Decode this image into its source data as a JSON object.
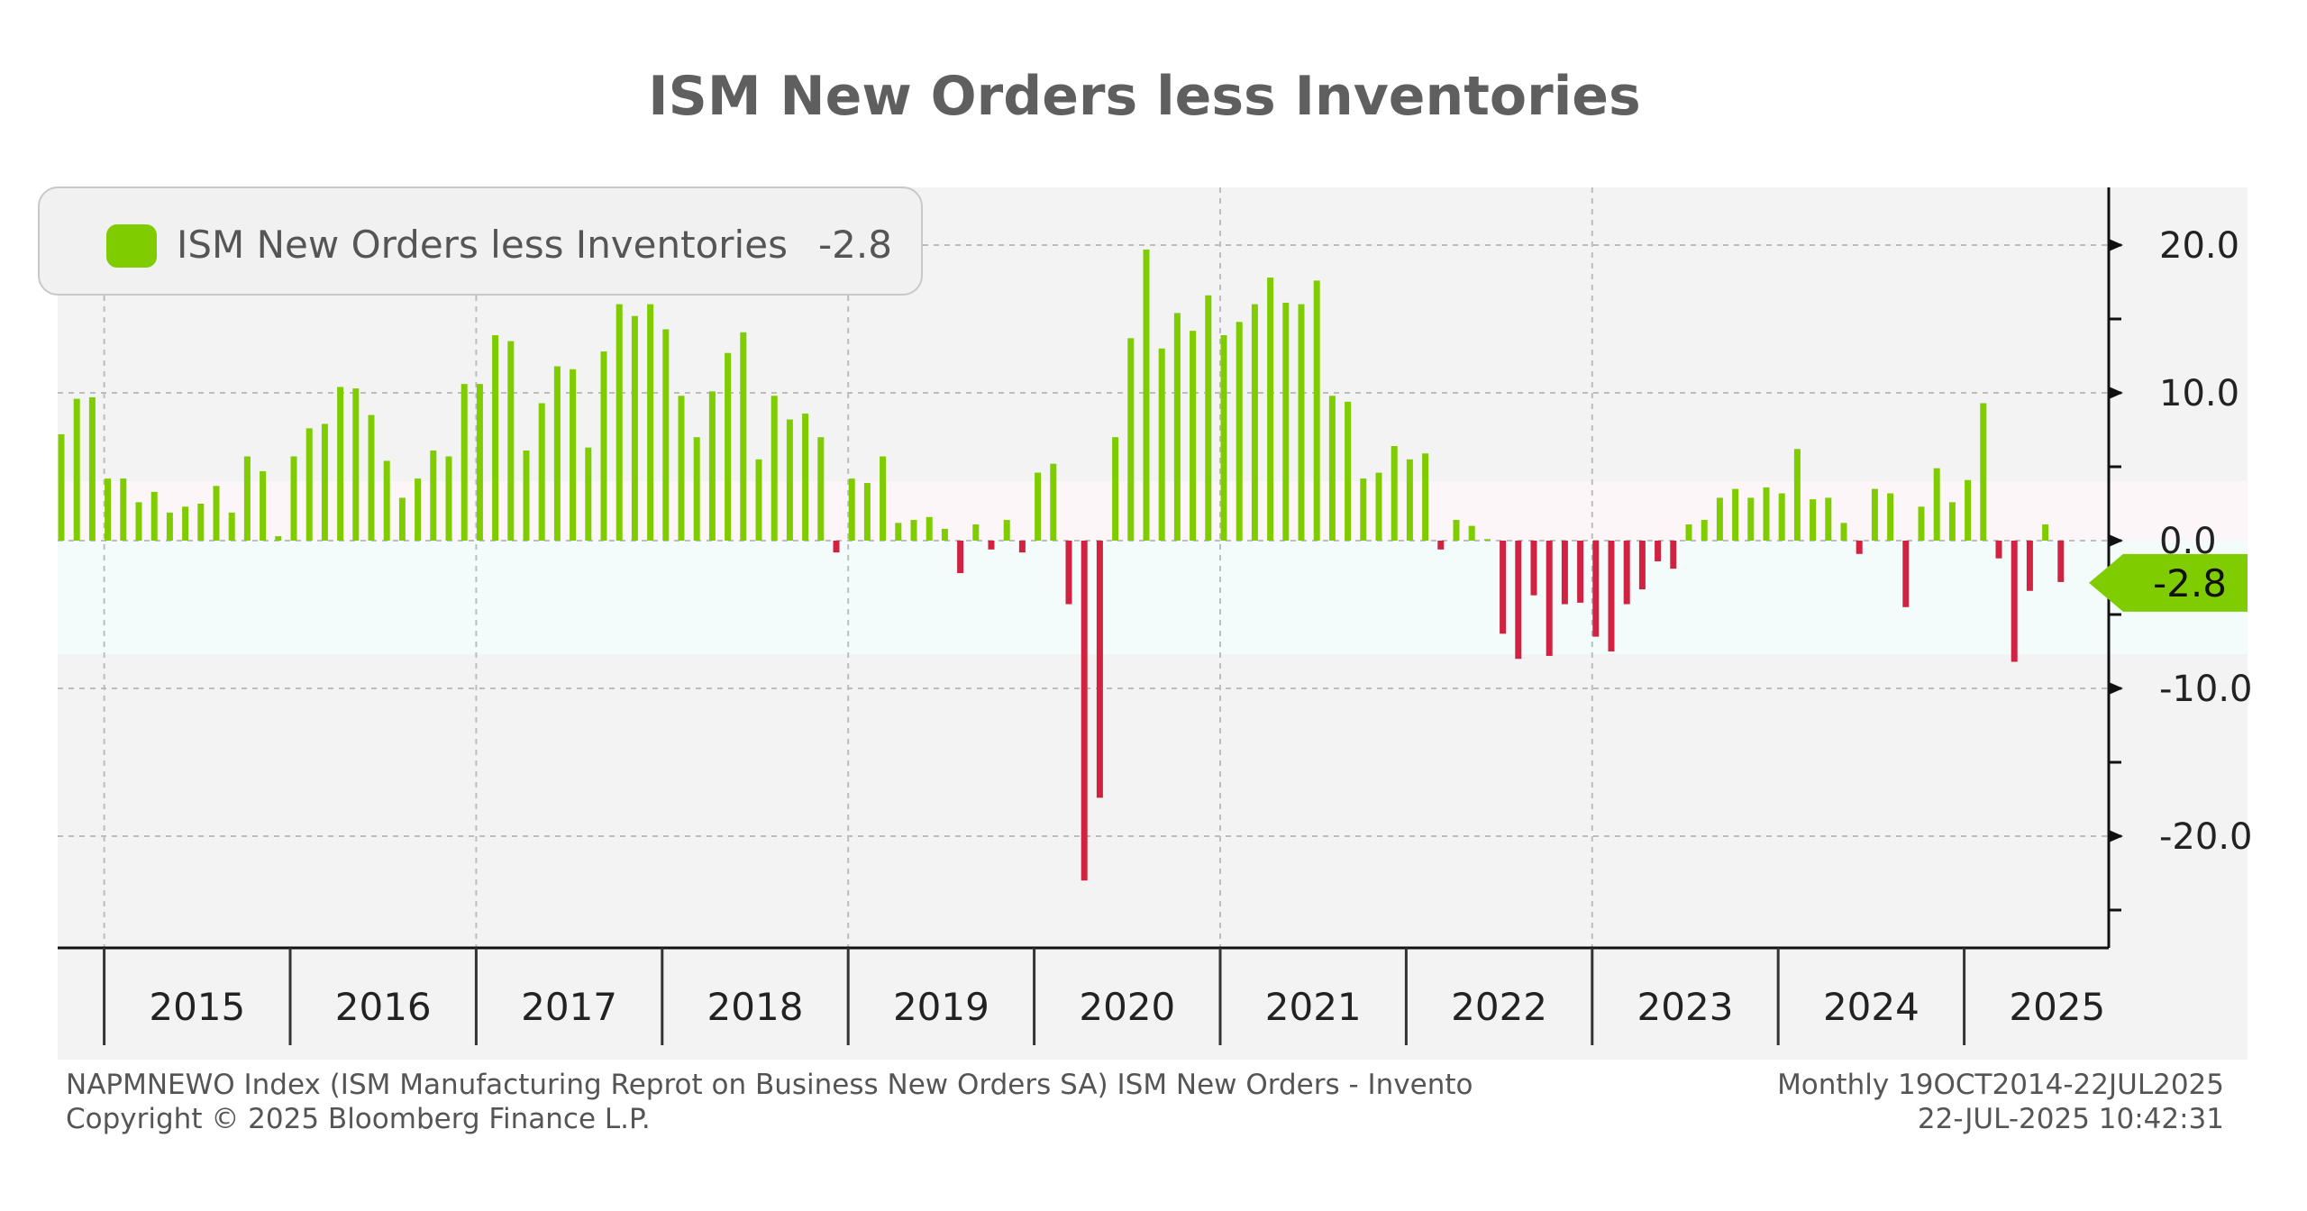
{
  "colors": {
    "positive": "#7fcc00",
    "negative": "#d22241",
    "grid": "#bdbdbd",
    "axis": "#111111",
    "marker_bg": "#7fcc00",
    "marker_text": "#111111",
    "band_positive": "#fcf6f9",
    "band_negative": "#f4fbfb",
    "plot_bg": "#f3f3f3"
  },
  "legend": {
    "label": "ISM New Orders less Inventories",
    "value": "-2.8"
  },
  "last_marker": "-2.8",
  "footer": {
    "source": "NAPMNEWO Index (ISM Manufacturing Reprot on Business New Orders SA) ISM New Orders - Invento",
    "copyright": "Copyright © 2025 Bloomberg Finance L.P.",
    "range": "Monthly 19OCT2014-22JUL2025",
    "timestamp": "22-JUL-2025 10:42:31"
  },
  "chart_data": {
    "type": "bar",
    "title": "ISM New Orders less Inventories",
    "xlabel": "",
    "ylabel": "",
    "ylim": [
      -27.5,
      24
    ],
    "yticks": [
      "20.0",
      "10.0",
      "0.0",
      "-10.0",
      "-20.0"
    ],
    "ytick_values": [
      20,
      10,
      0,
      -10,
      -20
    ],
    "year_labels": [
      "2015",
      "2016",
      "2017",
      "2018",
      "2019",
      "2020",
      "2021",
      "2022",
      "2023",
      "2024",
      "2025"
    ],
    "start": "Oct 2014",
    "series": [
      {
        "name": "ISM New Orders less Inventories",
        "values": [
          7.2,
          9.6,
          9.7,
          4.2,
          4.2,
          2.6,
          3.3,
          1.9,
          2.3,
          2.5,
          3.7,
          1.9,
          5.7,
          4.7,
          0.3,
          5.7,
          7.6,
          7.9,
          10.4,
          10.3,
          8.5,
          5.4,
          2.9,
          4.2,
          6.1,
          5.7,
          10.6,
          10.6,
          13.9,
          13.5,
          6.1,
          9.3,
          11.8,
          11.6,
          6.3,
          12.8,
          16.0,
          15.2,
          16.0,
          14.3,
          9.8,
          7.0,
          10.1,
          12.7,
          14.1,
          5.5,
          9.8,
          8.2,
          8.6,
          7.0,
          -0.8,
          4.2,
          3.9,
          5.7,
          1.2,
          1.4,
          1.6,
          0.8,
          -2.2,
          1.1,
          -0.6,
          1.4,
          -0.8,
          4.6,
          5.2,
          -4.3,
          -23.0,
          -17.4,
          7.0,
          13.7,
          19.7,
          13.0,
          15.4,
          14.2,
          16.6,
          13.9,
          14.8,
          16.0,
          17.8,
          16.1,
          16.0,
          17.6,
          9.8,
          9.4,
          4.2,
          4.6,
          6.4,
          5.5,
          5.9,
          -0.6,
          1.4,
          1.0,
          0.1,
          -6.3,
          -8.0,
          -3.7,
          -7.8,
          -4.3,
          -4.2,
          -6.5,
          -7.5,
          -4.3,
          -3.3,
          -1.4,
          -1.9,
          1.1,
          1.4,
          2.9,
          3.5,
          2.9,
          3.6,
          3.2,
          6.2,
          2.8,
          2.9,
          1.2,
          -0.9,
          3.5,
          3.2,
          -4.5,
          2.3,
          4.9,
          2.6,
          4.1,
          9.3,
          -1.2,
          -8.2,
          -3.4,
          1.1,
          -2.8
        ]
      }
    ]
  }
}
